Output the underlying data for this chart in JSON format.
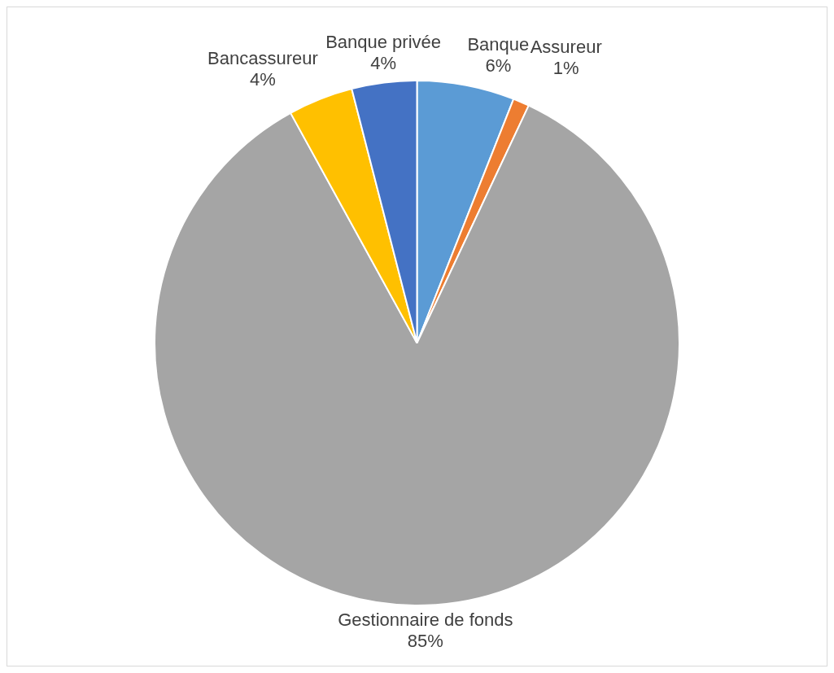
{
  "chart_data": {
    "type": "pie",
    "categories": [
      "Banque",
      "Assureur",
      "Gestionnaire de fonds",
      "Bancassureur",
      "Banque privée"
    ],
    "values": [
      6,
      1,
      85,
      4,
      4
    ],
    "value_labels": [
      "6%",
      "1%",
      "85%",
      "4%",
      "4%"
    ],
    "colors": [
      "#5b9bd5",
      "#ed7d31",
      "#a5a5a5",
      "#ffc000",
      "#4472c4"
    ],
    "legend": false
  }
}
